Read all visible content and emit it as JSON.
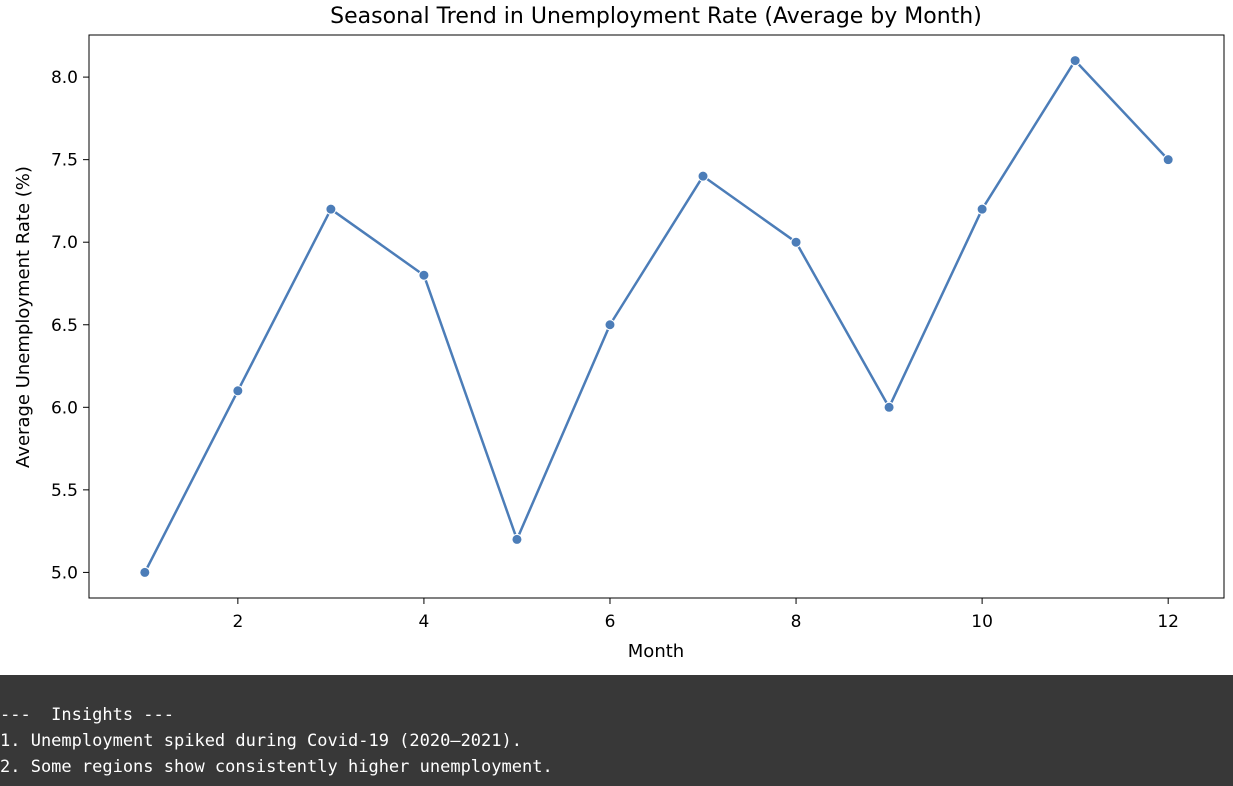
{
  "chart_data": {
    "type": "line",
    "title": "Seasonal Trend in Unemployment Rate (Average by Month)",
    "xlabel": "Month",
    "ylabel": "Average Unemployment Rate (%)",
    "x": [
      1,
      2,
      3,
      4,
      5,
      6,
      7,
      8,
      9,
      10,
      11,
      12
    ],
    "series": [
      {
        "values": [
          5.0,
          6.1,
          7.2,
          6.8,
          5.2,
          6.5,
          7.4,
          7.0,
          6.0,
          7.2,
          8.1,
          7.5
        ]
      }
    ],
    "xticks": [
      "2",
      "4",
      "6",
      "8",
      "10",
      "12"
    ],
    "xtick_values": [
      2,
      4,
      6,
      8,
      10,
      12
    ],
    "yticks": [
      "5.0",
      "5.5",
      "6.0",
      "6.5",
      "7.0",
      "7.5",
      "8.0"
    ],
    "ytick_values": [
      5.0,
      5.5,
      6.0,
      6.5,
      7.0,
      7.5,
      8.0
    ],
    "xlim": [
      0.4,
      12.6
    ],
    "ylim": [
      4.845,
      8.255
    ],
    "grid": false,
    "line_color": "#4c7db8",
    "marker": "circle"
  },
  "console": {
    "lines": [
      "---  Insights ---",
      "1. Unemployment spiked during Covid-19 (2020–2021).",
      "2. Some regions show consistently higher unemployment."
    ],
    "background": "#383838",
    "text_color": "#ffffff"
  }
}
